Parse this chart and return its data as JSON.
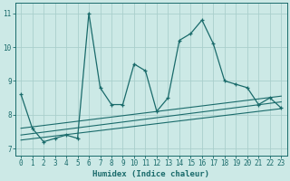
{
  "title": "",
  "xlabel": "Humidex (Indice chaleur)",
  "ylabel": "",
  "bg_color": "#cce9e6",
  "grid_color": "#aacfcc",
  "line_color": "#1a6b6b",
  "xlim": [
    -0.5,
    23.5
  ],
  "ylim": [
    6.8,
    11.3
  ],
  "yticks": [
    7,
    8,
    9,
    10,
    11
  ],
  "xticks": [
    0,
    1,
    2,
    3,
    4,
    5,
    6,
    7,
    8,
    9,
    10,
    11,
    12,
    13,
    14,
    15,
    16,
    17,
    18,
    19,
    20,
    21,
    22,
    23
  ],
  "main_line_x": [
    0,
    1,
    2,
    3,
    4,
    5,
    6,
    7,
    8,
    9,
    10,
    11,
    12,
    13,
    14,
    15,
    16,
    17,
    18,
    19,
    20,
    21,
    22,
    23
  ],
  "main_line_y": [
    8.6,
    7.6,
    7.2,
    7.3,
    7.4,
    7.3,
    11.0,
    8.8,
    8.3,
    8.3,
    9.5,
    9.3,
    8.1,
    8.5,
    10.2,
    10.4,
    10.8,
    10.1,
    9.0,
    8.9,
    8.8,
    8.3,
    8.5,
    8.2
  ],
  "line2_x": [
    0,
    23
  ],
  "line2_y": [
    7.6,
    8.55
  ],
  "line3_x": [
    0,
    23
  ],
  "line3_y": [
    7.4,
    8.38
  ],
  "line4_x": [
    0,
    23
  ],
  "line4_y": [
    7.25,
    8.18
  ]
}
